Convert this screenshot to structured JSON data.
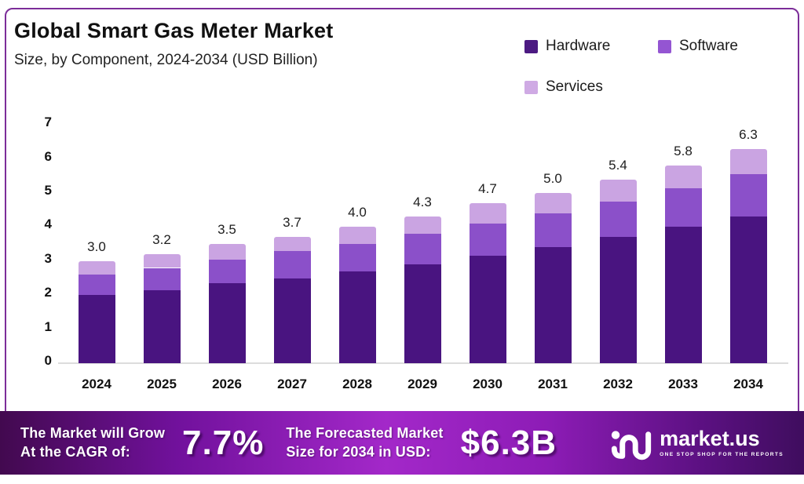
{
  "header": {
    "title": "Global Smart Gas Meter Market",
    "subtitle": "Size, by Component, 2024-2034 (USD Billion)"
  },
  "chart_data": {
    "type": "bar",
    "stacked": true,
    "title": "Global Smart Gas Meter Market Size, by Component, 2024-2034 (USD Billion)",
    "categories": [
      "2024",
      "2025",
      "2026",
      "2027",
      "2028",
      "2029",
      "2030",
      "2031",
      "2032",
      "2033",
      "2034"
    ],
    "series": [
      {
        "name": "Hardware",
        "color": "#491480",
        "values": [
          2.0,
          2.15,
          2.35,
          2.5,
          2.7,
          2.9,
          3.15,
          3.4,
          3.7,
          4.0,
          4.3
        ]
      },
      {
        "name": "Software",
        "color": "#8b50c9",
        "values": [
          0.6,
          0.65,
          0.7,
          0.8,
          0.8,
          0.9,
          0.95,
          1.0,
          1.05,
          1.15,
          1.25
        ]
      },
      {
        "name": "Services",
        "color": "#caa4e2",
        "values": [
          0.4,
          0.4,
          0.45,
          0.4,
          0.5,
          0.5,
          0.6,
          0.6,
          0.65,
          0.65,
          0.75
        ]
      }
    ],
    "totals": [
      3.0,
      3.2,
      3.5,
      3.7,
      4.0,
      4.3,
      4.7,
      5.0,
      5.4,
      5.8,
      6.3
    ],
    "total_labels": [
      "3.0",
      "3.2",
      "3.5",
      "3.7",
      "4.0",
      "4.3",
      "4.7",
      "5.0",
      "5.4",
      "5.8",
      "6.3"
    ],
    "xlabel": "",
    "ylabel": "",
    "ylim": [
      0,
      7
    ],
    "yticks": [
      0,
      1,
      2,
      3,
      4,
      5,
      6,
      7
    ],
    "grid": false,
    "legend_position": "top-right"
  },
  "banner": {
    "grow_line1": "The Market will Grow",
    "grow_line2": "At the CAGR of:",
    "cagr_value": "7.7%",
    "forecast_line1": "The Forecasted Market",
    "forecast_line2": "Size for 2034 in USD:",
    "forecast_value": "$6.3B",
    "logo_name": "market.us",
    "logo_tagline": "ONE STOP SHOP FOR THE REPORTS"
  },
  "colors": {
    "frame_border": "#7c2d99",
    "axis_line": "#dcdcdc",
    "hardware": "#491480",
    "software": "#8b50c9",
    "services": "#caa4e2",
    "banner_center": "#a328c9"
  }
}
